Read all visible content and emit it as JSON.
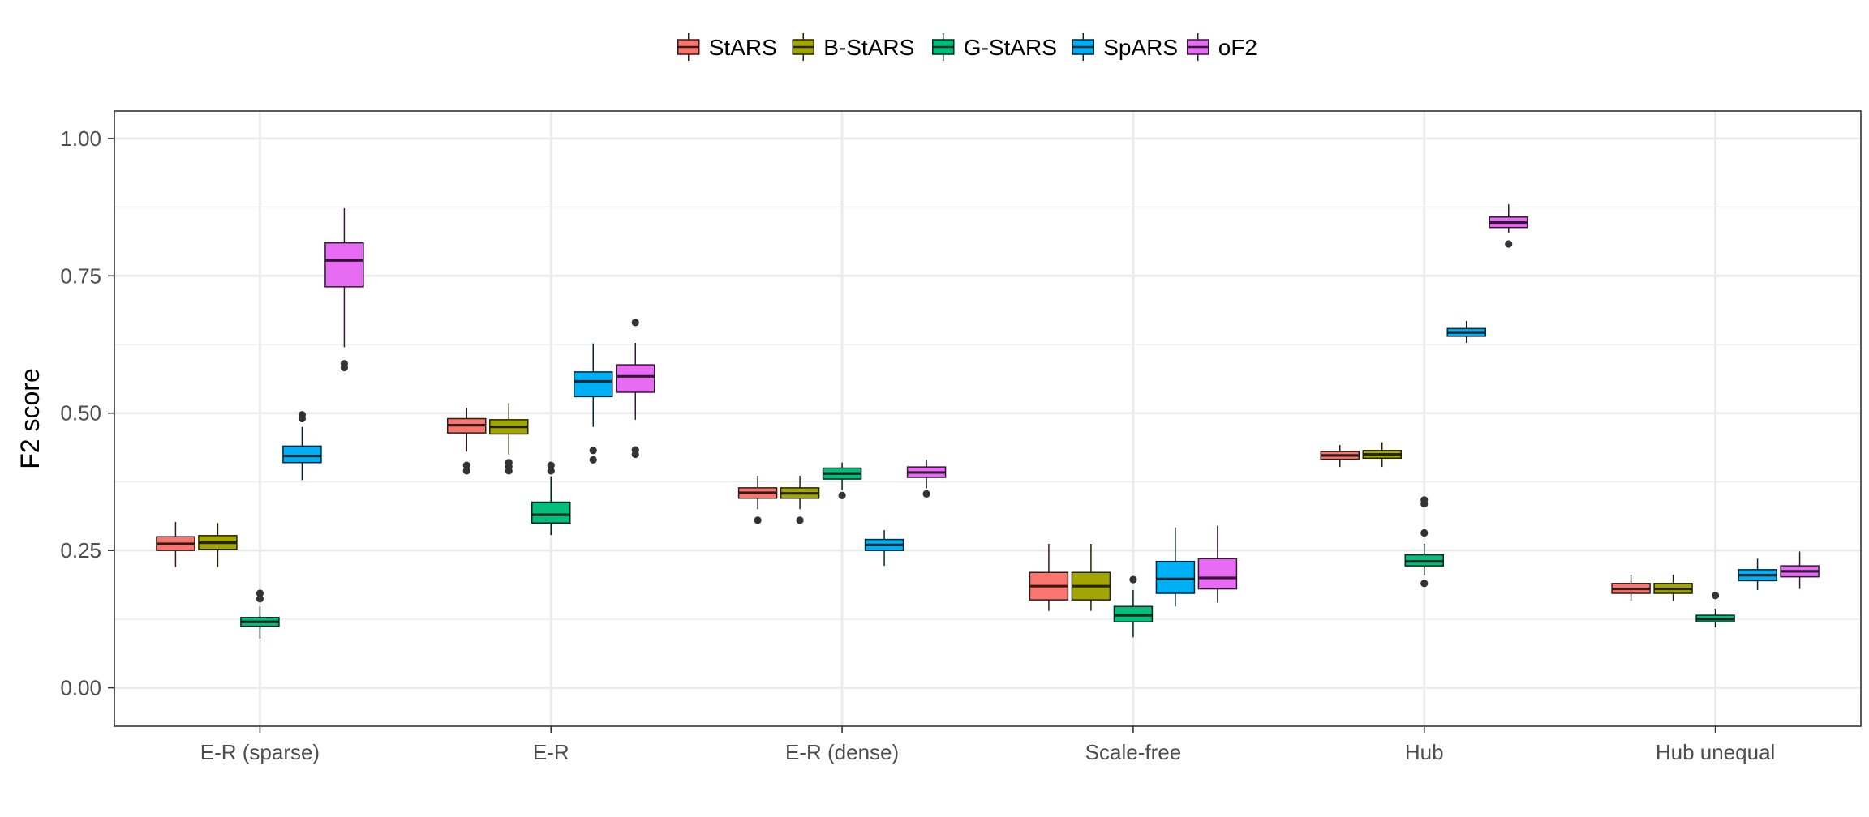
{
  "chart_data": {
    "type": "boxplot",
    "title": "",
    "xlabel": "",
    "ylabel": "F2 score",
    "ylim": [
      -0.07,
      1.05
    ],
    "yticks": [
      0.0,
      0.25,
      0.5,
      0.75,
      1.0
    ],
    "ytick_labels": [
      "0.00",
      "0.25",
      "0.50",
      "0.75",
      "1.00"
    ],
    "grid": true,
    "legend_position": "top",
    "categories": [
      "E-R (sparse)",
      "E-R",
      "E-R (dense)",
      "Scale-free",
      "Hub",
      "Hub unequal"
    ],
    "series": [
      {
        "name": "StARS",
        "color": "#F8766D",
        "boxes": [
          {
            "lo": 0.22,
            "q1": 0.25,
            "med": 0.262,
            "q3": 0.275,
            "hi": 0.302,
            "outliers": []
          },
          {
            "lo": 0.43,
            "q1": 0.464,
            "med": 0.478,
            "q3": 0.49,
            "hi": 0.51,
            "outliers": [
              0.405,
              0.395
            ]
          },
          {
            "lo": 0.325,
            "q1": 0.345,
            "med": 0.355,
            "q3": 0.364,
            "hi": 0.386,
            "outliers": [
              0.305
            ]
          },
          {
            "lo": 0.14,
            "q1": 0.16,
            "med": 0.185,
            "q3": 0.21,
            "hi": 0.262,
            "outliers": []
          },
          {
            "lo": 0.402,
            "q1": 0.416,
            "med": 0.423,
            "q3": 0.43,
            "hi": 0.442,
            "outliers": []
          },
          {
            "lo": 0.158,
            "q1": 0.172,
            "med": 0.18,
            "q3": 0.19,
            "hi": 0.206,
            "outliers": []
          }
        ]
      },
      {
        "name": "B-StARS",
        "color": "#A3A500",
        "boxes": [
          {
            "lo": 0.22,
            "q1": 0.252,
            "med": 0.264,
            "q3": 0.277,
            "hi": 0.3,
            "outliers": []
          },
          {
            "lo": 0.425,
            "q1": 0.462,
            "med": 0.475,
            "q3": 0.488,
            "hi": 0.518,
            "outliers": [
              0.41,
              0.403,
              0.395
            ]
          },
          {
            "lo": 0.325,
            "q1": 0.345,
            "med": 0.354,
            "q3": 0.364,
            "hi": 0.386,
            "outliers": [
              0.305
            ]
          },
          {
            "lo": 0.14,
            "q1": 0.16,
            "med": 0.185,
            "q3": 0.21,
            "hi": 0.262,
            "outliers": []
          },
          {
            "lo": 0.402,
            "q1": 0.418,
            "med": 0.425,
            "q3": 0.432,
            "hi": 0.447,
            "outliers": []
          },
          {
            "lo": 0.158,
            "q1": 0.172,
            "med": 0.18,
            "q3": 0.19,
            "hi": 0.206,
            "outliers": []
          }
        ]
      },
      {
        "name": "G-StARS",
        "color": "#00BF7D",
        "boxes": [
          {
            "lo": 0.09,
            "q1": 0.112,
            "med": 0.12,
            "q3": 0.128,
            "hi": 0.148,
            "outliers": [
              0.172,
              0.162
            ]
          },
          {
            "lo": 0.278,
            "q1": 0.3,
            "med": 0.315,
            "q3": 0.338,
            "hi": 0.385,
            "outliers": [
              0.405,
              0.395
            ]
          },
          {
            "lo": 0.36,
            "q1": 0.38,
            "med": 0.39,
            "q3": 0.4,
            "hi": 0.41,
            "outliers": [
              0.35
            ]
          },
          {
            "lo": 0.092,
            "q1": 0.12,
            "med": 0.132,
            "q3": 0.148,
            "hi": 0.178,
            "outliers": [
              0.197
            ]
          },
          {
            "lo": 0.205,
            "q1": 0.222,
            "med": 0.23,
            "q3": 0.242,
            "hi": 0.262,
            "outliers": [
              0.342,
              0.335,
              0.282,
              0.19
            ]
          },
          {
            "lo": 0.11,
            "q1": 0.12,
            "med": 0.125,
            "q3": 0.132,
            "hi": 0.144,
            "outliers": [
              0.168
            ]
          }
        ]
      },
      {
        "name": "SpARS",
        "color": "#00B0F6",
        "boxes": [
          {
            "lo": 0.378,
            "q1": 0.41,
            "med": 0.422,
            "q3": 0.44,
            "hi": 0.475,
            "outliers": [
              0.497,
              0.49
            ]
          },
          {
            "lo": 0.475,
            "q1": 0.53,
            "med": 0.558,
            "q3": 0.575,
            "hi": 0.627,
            "outliers": [
              0.432,
              0.415
            ]
          },
          {
            "lo": 0.222,
            "q1": 0.25,
            "med": 0.26,
            "q3": 0.27,
            "hi": 0.287,
            "outliers": []
          },
          {
            "lo": 0.148,
            "q1": 0.172,
            "med": 0.198,
            "q3": 0.23,
            "hi": 0.292,
            "outliers": []
          },
          {
            "lo": 0.628,
            "q1": 0.64,
            "med": 0.647,
            "q3": 0.654,
            "hi": 0.668,
            "outliers": []
          },
          {
            "lo": 0.178,
            "q1": 0.195,
            "med": 0.205,
            "q3": 0.215,
            "hi": 0.235,
            "outliers": []
          }
        ]
      },
      {
        "name": "oF2",
        "color": "#E76BF3",
        "boxes": [
          {
            "lo": 0.62,
            "q1": 0.73,
            "med": 0.778,
            "q3": 0.81,
            "hi": 0.873,
            "outliers": [
              0.59,
              0.583
            ]
          },
          {
            "lo": 0.488,
            "q1": 0.538,
            "med": 0.567,
            "q3": 0.588,
            "hi": 0.628,
            "outliers": [
              0.665,
              0.433,
              0.425
            ]
          },
          {
            "lo": 0.363,
            "q1": 0.383,
            "med": 0.392,
            "q3": 0.402,
            "hi": 0.415,
            "outliers": [
              0.353
            ]
          },
          {
            "lo": 0.155,
            "q1": 0.18,
            "med": 0.2,
            "q3": 0.235,
            "hi": 0.295,
            "outliers": []
          },
          {
            "lo": 0.828,
            "q1": 0.838,
            "med": 0.847,
            "q3": 0.857,
            "hi": 0.88,
            "outliers": [
              0.808
            ]
          },
          {
            "lo": 0.18,
            "q1": 0.202,
            "med": 0.212,
            "q3": 0.222,
            "hi": 0.248,
            "outliers": []
          }
        ]
      }
    ]
  }
}
